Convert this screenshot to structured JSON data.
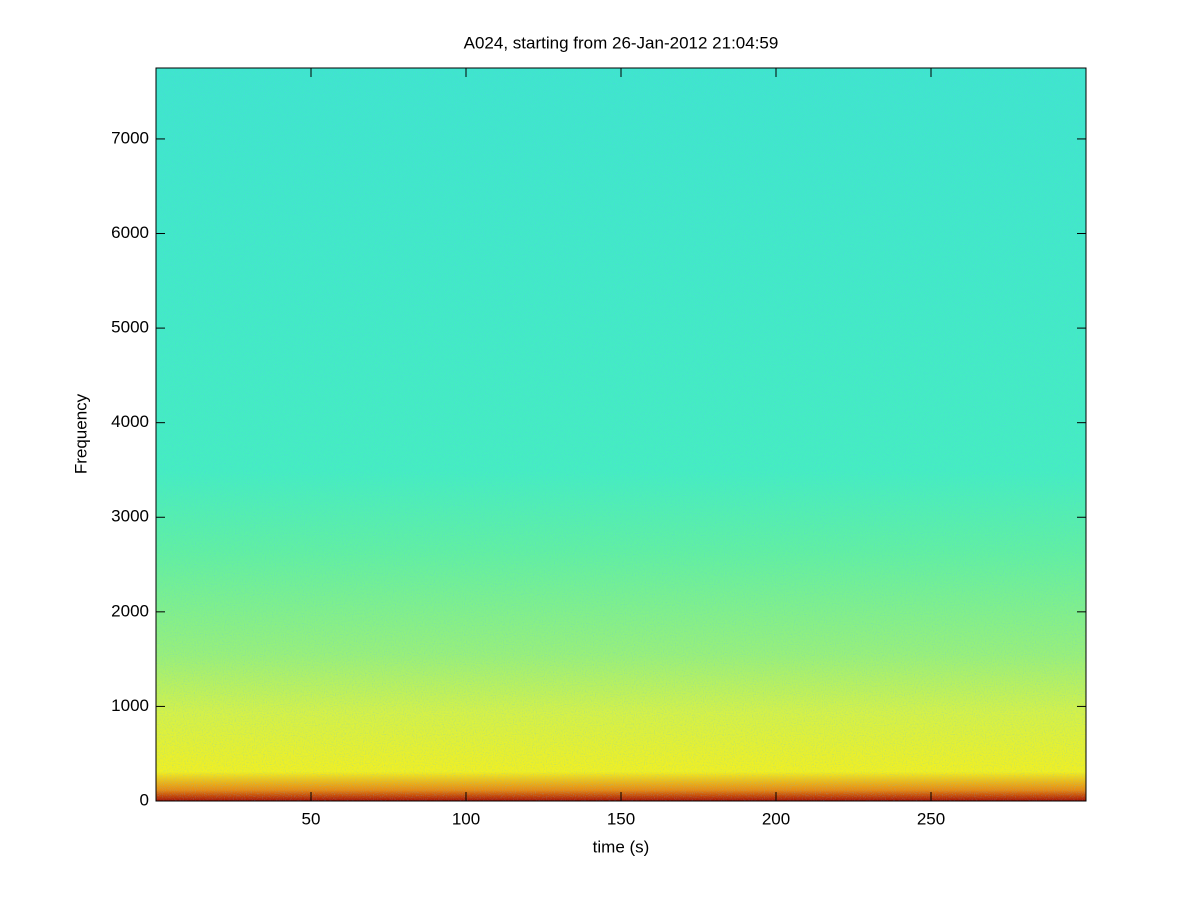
{
  "chart_data": {
    "type": "spectrogram",
    "title": "A024, starting from 26-Jan-2012 21:04:59",
    "x_label": "time (s)",
    "y_label": "Frequency",
    "xlim": [
      0,
      300
    ],
    "xticks": [
      50,
      100,
      150,
      200,
      250
    ],
    "ylim": [
      0,
      7750
    ],
    "yticks": [
      0,
      1000,
      2000,
      3000,
      4000,
      5000,
      6000,
      7000
    ],
    "colormap": "jet"
  }
}
